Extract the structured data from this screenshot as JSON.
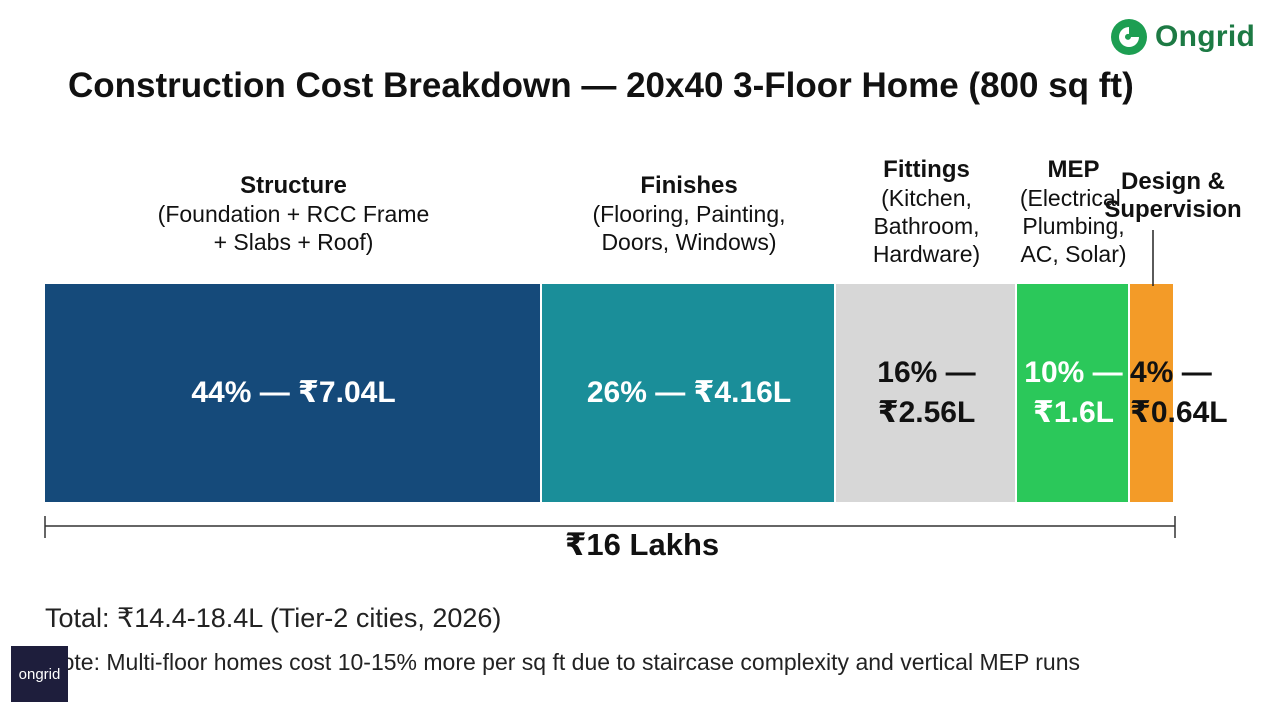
{
  "brand": {
    "name": "Ongrid",
    "watermark": "ongrid",
    "color": "#1d9e52"
  },
  "chart_data": {
    "type": "bar",
    "stacked": true,
    "orientation": "horizontal",
    "title": "Construction Cost Breakdown — 20x40 3-Floor Home (800 sq ft)",
    "total_label": "₹16 Lakhs",
    "total_value_lakhs": 16,
    "segments": [
      {
        "name": "Structure",
        "detail": "(Foundation + RCC Frame\n+ Slabs + Roof)",
        "percent": 44,
        "amount_lakhs": 7.04,
        "value_label": "44% — ₹7.04L",
        "color": "#154a7a"
      },
      {
        "name": "Finishes",
        "detail": "(Flooring, Painting,\nDoors, Windows)",
        "percent": 26,
        "amount_lakhs": 4.16,
        "value_label": "26% — ₹4.16L",
        "color": "#1a8e99"
      },
      {
        "name": "Fittings",
        "detail": "(Kitchen,\nBathroom,\nHardware)",
        "percent": 16,
        "amount_lakhs": 2.56,
        "value_label": "16% —\n₹2.56L",
        "color": "#d7d7d7"
      },
      {
        "name": "MEP",
        "detail": "(Electrical,\nPlumbing,\nAC, Solar)",
        "percent": 10,
        "amount_lakhs": 1.6,
        "value_label": "10% —\n₹1.6L",
        "color": "#2bc85a"
      },
      {
        "name": "Design &\nSupervision",
        "detail": "",
        "percent": 4,
        "amount_lakhs": 0.64,
        "value_label": "4% —\n₹0.64L",
        "color": "#f39b28"
      }
    ]
  },
  "footer": {
    "total": "Total: ₹14.4-18.4L (Tier-2 cities, 2026)",
    "note": "Note: Multi-floor homes cost 10-15% more per sq ft due to staircase complexity and vertical MEP runs"
  }
}
